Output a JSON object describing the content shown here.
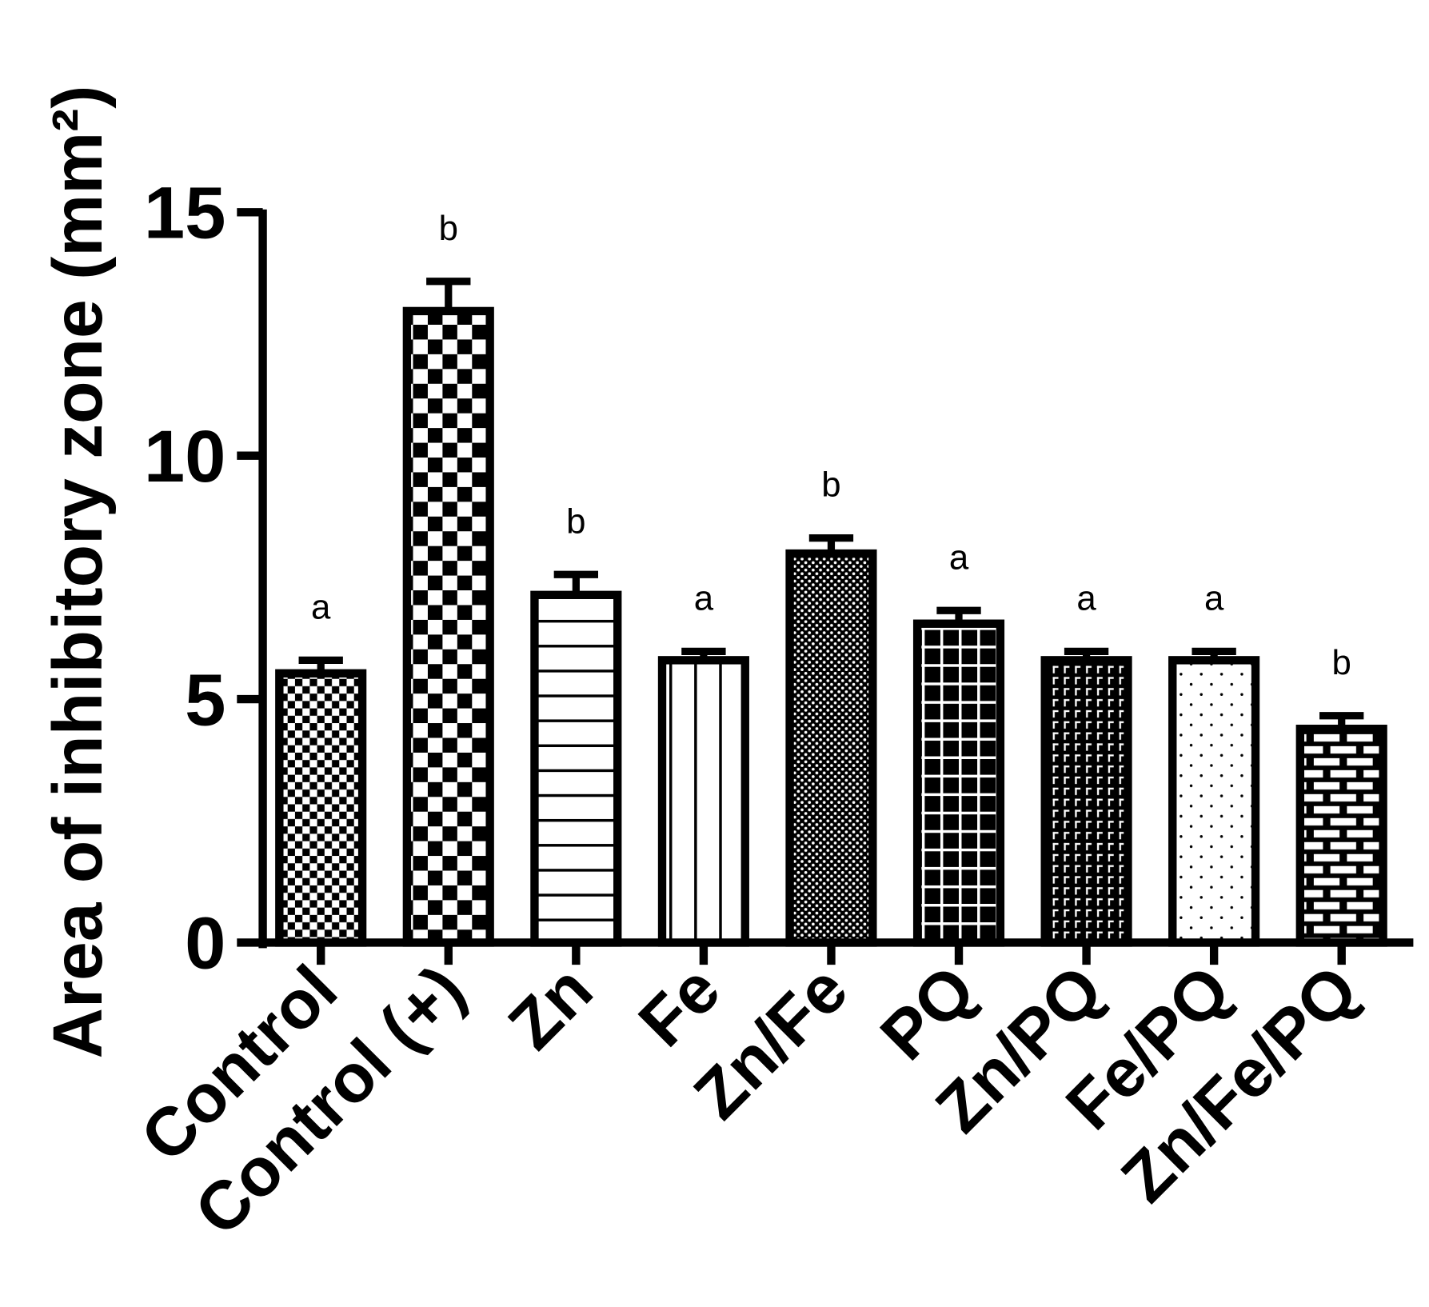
{
  "chart_data": {
    "type": "bar",
    "title": "",
    "xlabel": "",
    "ylabel": "Area of inhibitory zone (mm²)",
    "ylim": [
      0,
      15
    ],
    "yticks": [
      "0",
      "5",
      "10",
      "15"
    ],
    "grid": false,
    "categories": [
      "Control",
      "Control (+)",
      "Zn",
      "Fe",
      "Zn/Fe",
      "PQ",
      "Zn/PQ",
      "Fe/PQ",
      "Zn/Fe/PQ"
    ],
    "values": [
      5.53,
      12.97,
      7.14,
      5.8,
      7.99,
      6.55,
      5.8,
      5.8,
      4.39
    ],
    "errors": [
      0.27,
      0.61,
      0.42,
      0.18,
      0.32,
      0.27,
      0.18,
      0.18,
      0.27
    ],
    "significance": [
      "a",
      "b",
      "b",
      "a",
      "b",
      "a",
      "a",
      "a",
      "b"
    ],
    "fill_patterns": [
      "small-checker",
      "large-checker",
      "horizontal-lines",
      "vertical-lines",
      "dense-dots",
      "grid",
      "dashed-grid",
      "sparse-dots",
      "brick"
    ],
    "color": "#000000"
  }
}
